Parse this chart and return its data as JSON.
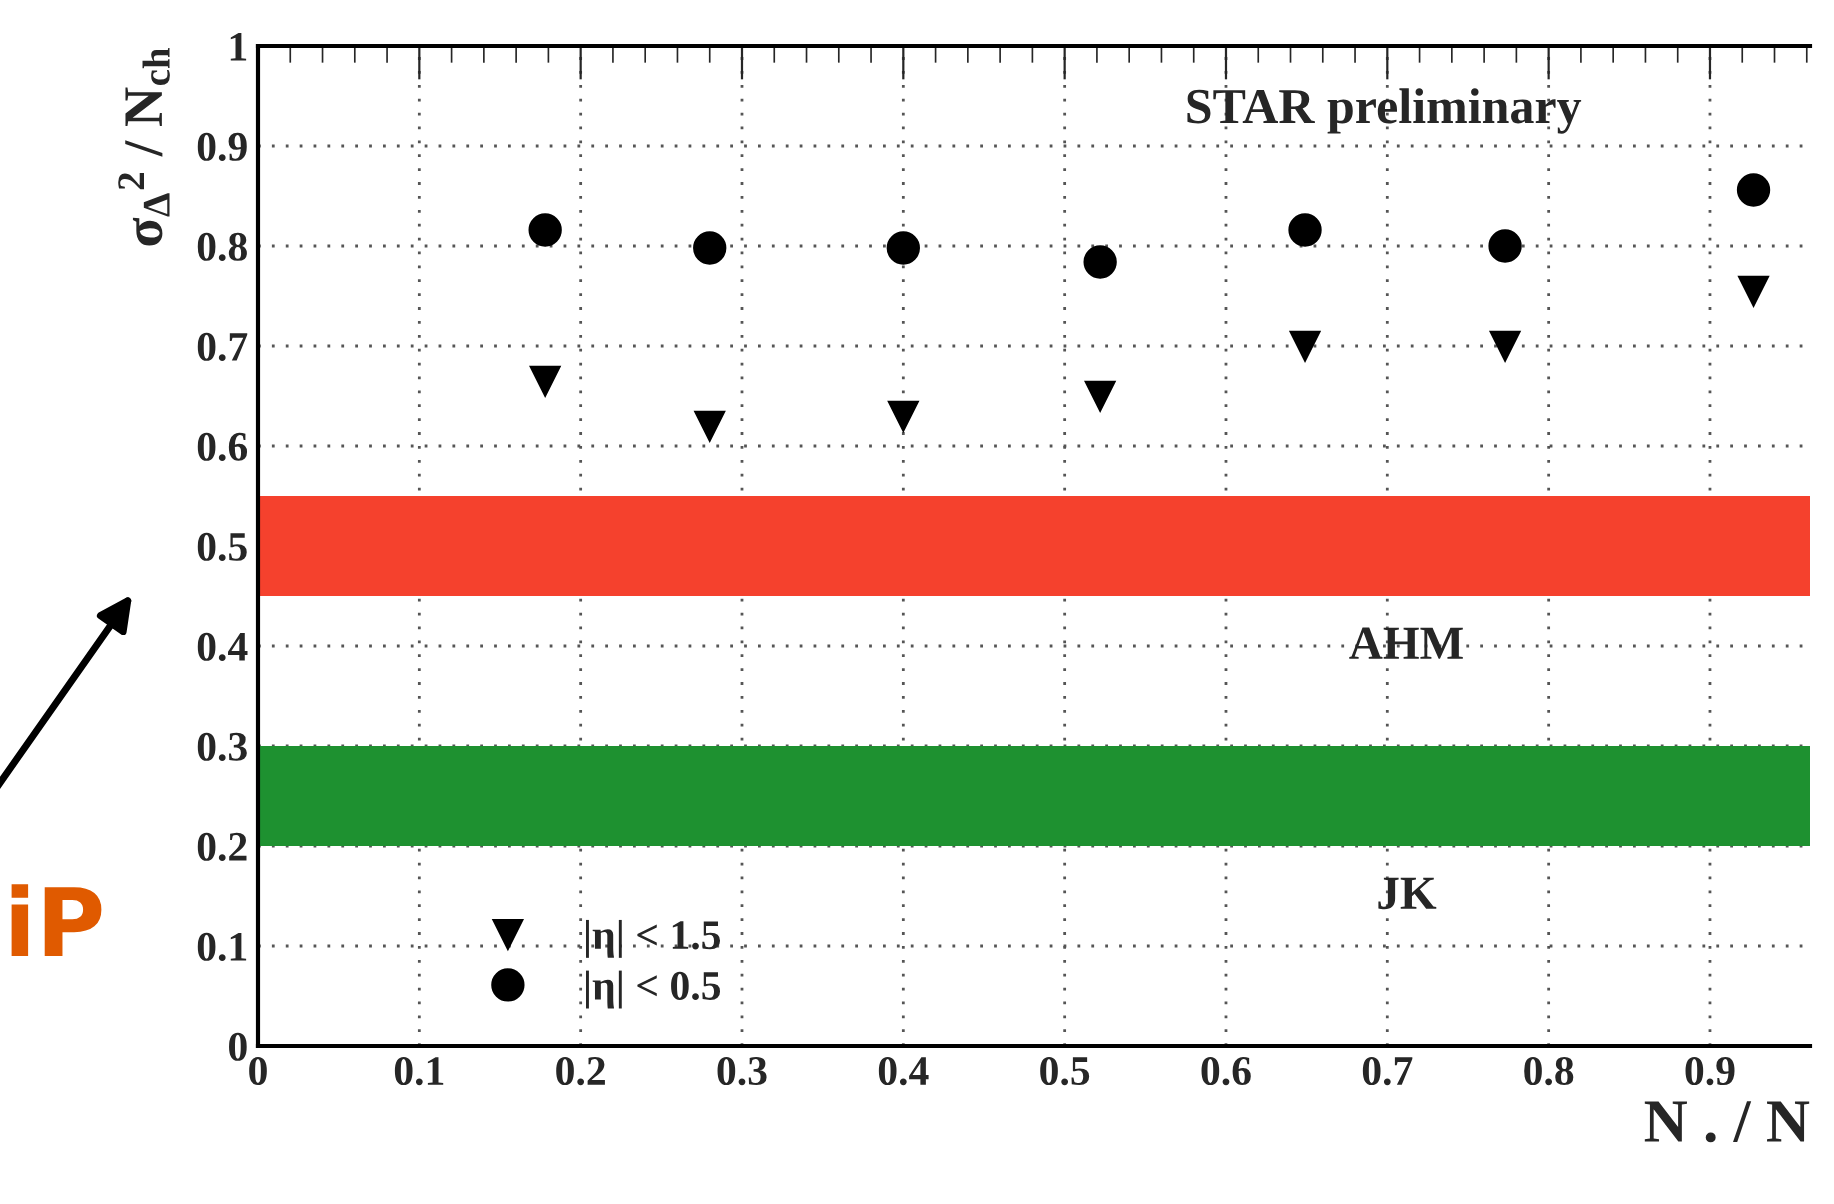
{
  "chart_data": {
    "type": "scatter",
    "ylabel": "σ$_{Δ}$$^{2}$ / N$_{ch}$",
    "xlabel": "N . / N",
    "x": [
      0.178,
      0.28,
      0.4,
      0.522,
      0.649,
      0.773,
      0.927
    ],
    "series": [
      {
        "name": "|η| < 1.5",
        "color": "#000000",
        "marker": "triangle",
        "values": [
          0.665,
          0.62,
          0.63,
          0.65,
          0.7,
          0.7,
          0.755
        ]
      },
      {
        "name": "|η| < 0.5",
        "color": "#000000",
        "marker": "circle",
        "values": [
          0.816,
          0.798,
          0.798,
          0.784,
          0.816,
          0.8,
          0.856
        ]
      }
    ],
    "bands": [
      {
        "axis": "y",
        "from": 0.45,
        "to": 0.55,
        "label": "AHM",
        "color": "#f5412d"
      },
      {
        "axis": "y",
        "from": 0.2,
        "to": 0.3,
        "label": "JK",
        "color": "#1e9130"
      }
    ],
    "annotations": [
      "STAR preliminary",
      "iP"
    ],
    "xlim": [
      0,
      0.962
    ],
    "ylim": [
      0,
      1
    ],
    "xticks": [
      0,
      0.1,
      0.2,
      0.3,
      0.4,
      0.5,
      0.6,
      0.7,
      0.8,
      0.9
    ],
    "yticks": [
      0,
      0.1,
      0.2,
      0.3,
      0.4,
      0.5,
      0.6,
      0.7,
      0.8,
      0.9,
      1
    ],
    "grid": true,
    "legend": "bottom left"
  }
}
